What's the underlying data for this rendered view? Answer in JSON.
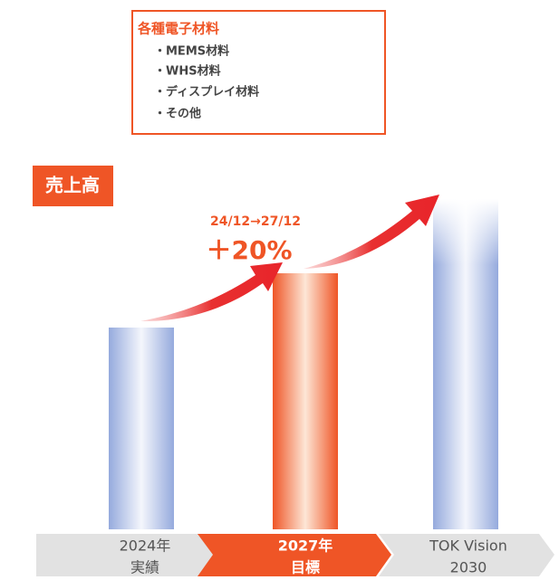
{
  "box": {
    "title": "各種電子材料",
    "items": [
      "・MEMS材料",
      "・WHS材料",
      "・ディスプレイ材料",
      "・その他"
    ]
  },
  "label": "売上高",
  "annotation": {
    "period": "24/12→27/12",
    "growth": "＋20%"
  },
  "steps": [
    {
      "year": "2024年",
      "caption": "実績"
    },
    {
      "year": "2027年",
      "caption": "目標"
    },
    {
      "year": "TOK Vision",
      "caption": "2030"
    }
  ]
}
